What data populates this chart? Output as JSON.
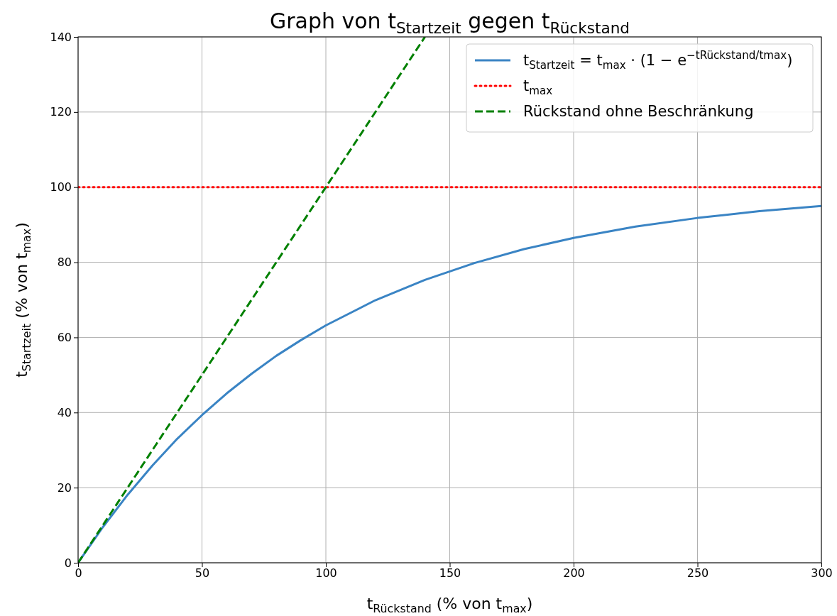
{
  "chart_data": {
    "type": "line",
    "title": "Graph von t$_{Startzeit}$ gegen t$_{Rückstand}$",
    "xlabel": "t$_{Rückstand}$ (% von t$_{max}$)",
    "ylabel": "t$_{Startzeit}$ (% von t$_{max}$)",
    "xlim": [
      0,
      300
    ],
    "ylim": [
      0,
      140
    ],
    "xticks": [
      0,
      50,
      100,
      150,
      200,
      250,
      300
    ],
    "yticks": [
      0,
      20,
      40,
      60,
      80,
      100,
      120,
      140
    ],
    "grid": true,
    "legend": "top right",
    "series": [
      {
        "name": "t$_{Startzeit}$ = t$_{max}$ · (1 − e$^{−tRückstand/tmax}$)",
        "color": "#3a84c4",
        "line_style": "solid",
        "x": [
          0,
          10,
          20,
          30,
          40,
          50,
          60,
          70,
          80,
          90,
          100,
          120,
          140,
          160,
          180,
          200,
          225,
          250,
          275,
          300
        ],
        "values": [
          0,
          9.5,
          18.1,
          25.9,
          33.0,
          39.3,
          45.1,
          50.3,
          55.1,
          59.3,
          63.2,
          69.9,
          75.3,
          79.8,
          83.5,
          86.5,
          89.5,
          91.8,
          93.6,
          95.0
        ]
      },
      {
        "name": "t$_{max}$",
        "color": "#ff0000",
        "line_style": "dotted",
        "x": [
          0,
          300
        ],
        "values": [
          100,
          100
        ]
      },
      {
        "name": "Rückstand ohne Beschränkung",
        "color": "#008000",
        "line_style": "dashed",
        "x": [
          0,
          140
        ],
        "values": [
          0,
          140
        ]
      }
    ]
  }
}
